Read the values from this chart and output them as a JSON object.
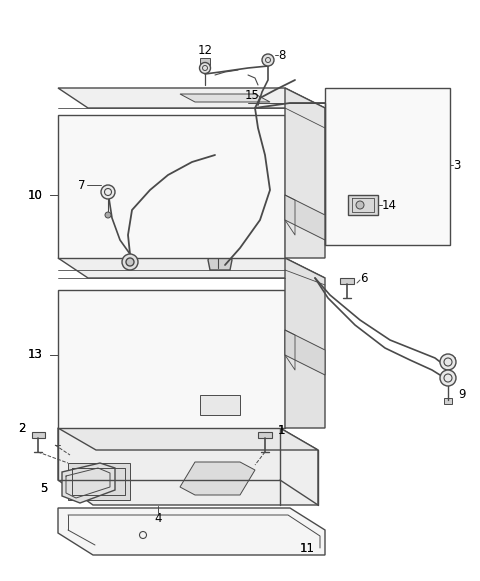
{
  "bg_color": "#ffffff",
  "line_color": "#4a4a4a",
  "fig_width": 4.8,
  "fig_height": 5.81,
  "dpi": 100
}
